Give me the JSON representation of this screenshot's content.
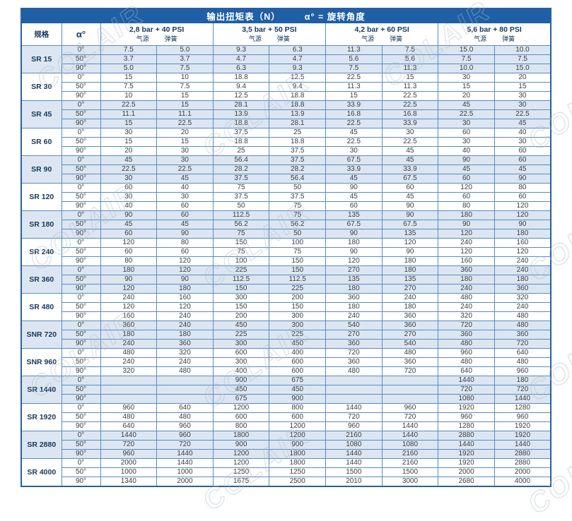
{
  "title": {
    "main": "输出扭矩表（N）",
    "sub": "α° = 旋转角度"
  },
  "watermark": {
    "text": "COLAIR"
  },
  "colors": {
    "title_bar": "#1e5fa6",
    "grid_border": "#5b8ac0",
    "outer_border": "#2a6099",
    "shaded_row": "#dce6f2",
    "header_text": "#17375d",
    "value_text": "#3d3d3d"
  },
  "table": {
    "header": {
      "spec": "规格",
      "angle": "α°",
      "air": "气源",
      "spring": "弹簧",
      "groups": [
        {
          "label": "2,8 bar + 40 PSI"
        },
        {
          "label": "3,5 bar + 50 PSI"
        },
        {
          "label": "4,2 bar + 60 PSI"
        },
        {
          "label": "5,6 bar + 80 PSI"
        }
      ]
    },
    "rows": [
      {
        "spec": "SR 15",
        "angles": [
          {
            "angle": "0°",
            "values": [
              "7.5",
              "5.0",
              "9.3",
              "6.3",
              "11.3",
              "7.5",
              "15.0",
              "10.0"
            ]
          },
          {
            "angle": "50°",
            "values": [
              "3.7",
              "3.7",
              "4.7",
              "4.7",
              "5.6",
              "5.6",
              "7.5",
              "7.5"
            ]
          },
          {
            "angle": "90°",
            "values": [
              "5.0",
              "7.5",
              "6.3",
              "9.3",
              "7.5",
              "11.3",
              "10.0",
              "15.0"
            ]
          }
        ]
      },
      {
        "spec": "SR 30",
        "angles": [
          {
            "angle": "0°",
            "values": [
              "15",
              "10",
              "18.8",
              "12.5",
              "22.5",
              "15",
              "30",
              "20"
            ]
          },
          {
            "angle": "50°",
            "values": [
              "7.5",
              "7.5",
              "9.4",
              "9.4",
              "11.3",
              "11.3",
              "15",
              "15"
            ]
          },
          {
            "angle": "90°",
            "values": [
              "10",
              "15",
              "12.5",
              "18.8",
              "15",
              "22.5",
              "20",
              "30"
            ]
          }
        ]
      },
      {
        "spec": "SR 45",
        "angles": [
          {
            "angle": "0°",
            "values": [
              "22.5",
              "15",
              "28.1",
              "18.8",
              "33.9",
              "22.5",
              "45",
              "30"
            ]
          },
          {
            "angle": "50°",
            "values": [
              "11.1",
              "11.1",
              "13.9",
              "13.9",
              "16.8",
              "16.8",
              "22.5",
              "22.5"
            ]
          },
          {
            "angle": "90°",
            "values": [
              "15",
              "22.5",
              "18.8",
              "28.1",
              "22.5",
              "33.9",
              "30",
              "45"
            ]
          }
        ]
      },
      {
        "spec": "SR 60",
        "angles": [
          {
            "angle": "0°",
            "values": [
              "30",
              "20",
              "37.5",
              "25",
              "45",
              "30",
              "60",
              "40"
            ]
          },
          {
            "angle": "50°",
            "values": [
              "15",
              "15",
              "18.8",
              "18.8",
              "22.5",
              "22.5",
              "30",
              "30"
            ]
          },
          {
            "angle": "90°",
            "values": [
              "20",
              "30",
              "25",
              "37.5",
              "30",
              "45",
              "40",
              "60"
            ]
          }
        ]
      },
      {
        "spec": "SR 90",
        "angles": [
          {
            "angle": "0°",
            "values": [
              "45",
              "30",
              "56.4",
              "37.5",
              "67.5",
              "45",
              "90",
              "60"
            ]
          },
          {
            "angle": "50°",
            "values": [
              "22.5",
              "22.5",
              "28.2",
              "28.2",
              "33.9",
              "33.9",
              "45",
              "45"
            ]
          },
          {
            "angle": "90°",
            "values": [
              "30",
              "45",
              "37.5",
              "56.4",
              "45",
              "67.5",
              "60",
              "90"
            ]
          }
        ]
      },
      {
        "spec": "SR 120",
        "angles": [
          {
            "angle": "0°",
            "values": [
              "60",
              "40",
              "75",
              "50",
              "90",
              "60",
              "120",
              "80"
            ]
          },
          {
            "angle": "50°",
            "values": [
              "30",
              "30",
              "37.5",
              "37.5",
              "45",
              "45",
              "60",
              "60"
            ]
          },
          {
            "angle": "90°",
            "values": [
              "40",
              "60",
              "50",
              "75",
              "60",
              "90",
              "80",
              "120"
            ]
          }
        ]
      },
      {
        "spec": "SR 180",
        "angles": [
          {
            "angle": "0°",
            "values": [
              "90",
              "60",
              "112.5",
              "75",
              "135",
              "90",
              "180",
              "120"
            ]
          },
          {
            "angle": "50°",
            "values": [
              "45",
              "45",
              "56.2",
              "56.2",
              "67.5",
              "67.5",
              "90",
              "90"
            ]
          },
          {
            "angle": "90°",
            "values": [
              "60",
              "90",
              "75",
              "50",
              "90",
              "135",
              "120",
              "180"
            ]
          }
        ]
      },
      {
        "spec": "SR 240",
        "dashed": true,
        "angles": [
          {
            "angle": "0°",
            "values": [
              "120",
              "80",
              "150",
              "100",
              "180",
              "120",
              "240",
              "160"
            ]
          },
          {
            "angle": "50°",
            "values": [
              "60",
              "60",
              "75",
              "75",
              "90",
              "90",
              "120",
              "120"
            ]
          },
          {
            "angle": "90°",
            "values": [
              "80",
              "120",
              "100",
              "150",
              "120",
              "180",
              "160",
              "240"
            ]
          }
        ]
      },
      {
        "spec": "SR 360",
        "angles": [
          {
            "angle": "0°",
            "values": [
              "180",
              "120",
              "225",
              "150",
              "270",
              "180",
              "360",
              "240"
            ]
          },
          {
            "angle": "50°",
            "values": [
              "90",
              "90",
              "112.5",
              "112.5",
              "135",
              "135",
              "180",
              "180"
            ]
          },
          {
            "angle": "90°",
            "values": [
              "120",
              "180",
              "150",
              "225",
              "180",
              "270",
              "240",
              "360"
            ]
          }
        ]
      },
      {
        "spec": "SR 480",
        "angles": [
          {
            "angle": "0°",
            "values": [
              "240",
              "160",
              "300",
              "200",
              "360",
              "240",
              "480",
              "320"
            ]
          },
          {
            "angle": "50°",
            "values": [
              "120",
              "120",
              "150",
              "150",
              "180",
              "180",
              "240",
              "240"
            ]
          },
          {
            "angle": "90°",
            "values": [
              "160",
              "240",
              "200",
              "300",
              "240",
              "360",
              "320",
              "480"
            ]
          }
        ]
      },
      {
        "spec": "SNR 720",
        "angles": [
          {
            "angle": "0°",
            "values": [
              "360",
              "240",
              "450",
              "300",
              "540",
              "360",
              "720",
              "480"
            ]
          },
          {
            "angle": "50°",
            "values": [
              "180",
              "180",
              "225",
              "225",
              "270",
              "270",
              "360",
              "360"
            ]
          },
          {
            "angle": "90°",
            "values": [
              "240",
              "360",
              "300",
              "450",
              "360",
              "540",
              "480",
              "720"
            ]
          }
        ]
      },
      {
        "spec": "SNR 960",
        "angles": [
          {
            "angle": "0°",
            "values": [
              "480",
              "320",
              "600",
              "400",
              "720",
              "480",
              "960",
              "640"
            ]
          },
          {
            "angle": "50°",
            "values": [
              "240",
              "240",
              "300",
              "600",
              "360",
              "360",
              "480",
              "480"
            ]
          },
          {
            "angle": "90°",
            "values": [
              "320",
              "480",
              "400",
              "600",
              "480",
              "720",
              "640",
              "960"
            ]
          }
        ]
      },
      {
        "spec": "SR 1440",
        "angles": [
          {
            "angle": "0°",
            "values": [
              "",
              "",
              "900",
              "675",
              "",
              "",
              "1440",
              "180"
            ]
          },
          {
            "angle": "50°",
            "values": [
              "",
              "",
              "450",
              "450",
              "",
              "",
              "720",
              "720"
            ]
          },
          {
            "angle": "90°",
            "values": [
              "",
              "",
              "675",
              "900",
              "",
              "",
              "1080",
              "1440"
            ]
          }
        ]
      },
      {
        "spec": "SR 1920",
        "angles": [
          {
            "angle": "0°",
            "values": [
              "960",
              "640",
              "1200",
              "800",
              "1440",
              "960",
              "1920",
              "1280"
            ]
          },
          {
            "angle": "50°",
            "values": [
              "480",
              "480",
              "600",
              "600",
              "720",
              "720",
              "960",
              "960"
            ]
          },
          {
            "angle": "90°",
            "values": [
              "640",
              "960",
              "800",
              "1200",
              "960",
              "1440",
              "1280",
              "1920"
            ]
          }
        ]
      },
      {
        "spec": "SR 2880",
        "angles": [
          {
            "angle": "0°",
            "values": [
              "1440",
              "960",
              "1800",
              "1200",
              "2160",
              "1440",
              "2880",
              "1920"
            ]
          },
          {
            "angle": "50°",
            "values": [
              "720",
              "720",
              "900",
              "900",
              "1080",
              "1080",
              "1440",
              "1440"
            ]
          },
          {
            "angle": "90°",
            "values": [
              "960",
              "1440",
              "1200",
              "1800",
              "1440",
              "2160",
              "1920",
              "2880"
            ]
          }
        ]
      },
      {
        "spec": "SR 4000",
        "angles": [
          {
            "angle": "0°",
            "values": [
              "2000",
              "1440",
              "1200",
              "1800",
              "1440",
              "2160",
              "1920",
              "2880"
            ]
          },
          {
            "angle": "50°",
            "values": [
              "1000",
              "1000",
              "1250",
              "1250",
              "1500",
              "1500",
              "2000",
              "2000"
            ]
          },
          {
            "angle": "90°",
            "values": [
              "1340",
              "2000",
              "1675",
              "2500",
              "2010",
              "3000",
              "2680",
              "4000"
            ]
          }
        ]
      }
    ]
  }
}
